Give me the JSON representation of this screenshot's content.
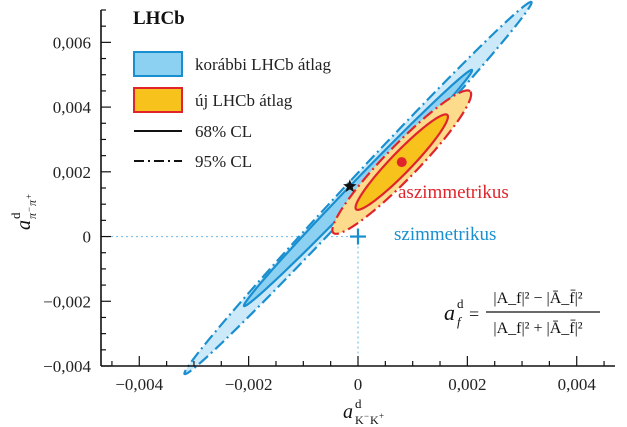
{
  "chart_data": {
    "type": "scatter",
    "experiment_label": "LHCb",
    "xlabel": "a^d_{K−K+}",
    "ylabel": "a^d_{π−π+}",
    "xlim": [
      -0.0047,
      0.0047
    ],
    "ylim": [
      -0.004,
      0.007
    ],
    "x_ticks": [
      -0.004,
      -0.002,
      0,
      0.002,
      0.004
    ],
    "x_tick_labels": [
      "−0,004",
      "−0,002",
      "0",
      "0,002",
      "0,004"
    ],
    "y_ticks": [
      -0.004,
      -0.002,
      0,
      0.002,
      0.004,
      0.006
    ],
    "y_tick_labels": [
      "−0,004",
      "−0,002",
      "0",
      "0,002",
      "0,004",
      "0,006"
    ],
    "legend": {
      "position": "top-left",
      "entries": [
        {
          "label": "korábbi LHCb átlag",
          "fill": "#aadcf4",
          "stroke": "#1a8fd0"
        },
        {
          "label": "új LHCb átlag",
          "fill": "#f8c21c",
          "stroke": "#e0242b"
        },
        {
          "label": "68% CL",
          "line": "solid"
        },
        {
          "label": "95% CL",
          "line": "dashdot"
        }
      ]
    },
    "annotations": [
      {
        "text": "aszimmetrikus",
        "color": "#e0242b",
        "x": 0.00195,
        "y": 0.00145
      },
      {
        "text": "szimmetrikus",
        "color": "#1a8fd0",
        "x": 0.00115,
        "y": 0.00012
      }
    ],
    "formula": {
      "lhs": "a",
      "lhs_sup": "d",
      "lhs_sub": "f",
      "numerator": "|A_f|² − |Ā_f̄|²",
      "denominator": "|A_f|² + |Ā_f̄|²"
    },
    "series": [
      {
        "name": "korábbi LHCb átlag",
        "cl": "95%",
        "center": [
          0.0,
          0.0015
        ],
        "semi_major": 0.00465,
        "semi_minor": 0.00019,
        "angle_deg": 47,
        "fill": "#cbe9f8",
        "stroke": "#1a8fd0",
        "line": "dashdot"
      },
      {
        "name": "korábbi LHCb átlag",
        "cl": "68%",
        "center": [
          0.0,
          0.0015
        ],
        "semi_major": 0.003,
        "semi_minor": 0.00013,
        "angle_deg": 46,
        "fill": "#8dd1f2",
        "stroke": "#1a8fd0",
        "line": "solid"
      },
      {
        "name": "új LHCb átlag",
        "cl": "95%",
        "center": [
          0.0008,
          0.0023
        ],
        "semi_major": 0.0018,
        "semi_minor": 0.0003,
        "angle_deg": 46,
        "fill": "#fcdb8c",
        "stroke": "#e0242b",
        "line": "dashdot"
      },
      {
        "name": "új LHCb átlag",
        "cl": "68%",
        "center": [
          0.0008,
          0.0023
        ],
        "semi_major": 0.0012,
        "semi_minor": 0.00019,
        "angle_deg": 46,
        "fill": "#f8c21c",
        "stroke": "#e0242b",
        "line": "solid"
      }
    ],
    "points": [
      {
        "name": "új központi érték",
        "x": 0.0008,
        "y": 0.0023,
        "marker": "dot",
        "color": "#e0242b"
      },
      {
        "name": "csillag",
        "x": -0.00015,
        "y": 0.00155,
        "marker": "star",
        "color": "#111111"
      },
      {
        "name": "nulla pont",
        "x": 0,
        "y": 0,
        "marker": "plus",
        "color": "#1a8fd0"
      }
    ],
    "reference_lines": {
      "x": 0,
      "y": 0,
      "color": "#7cc4ea",
      "style": "dotted"
    },
    "grid": false
  }
}
